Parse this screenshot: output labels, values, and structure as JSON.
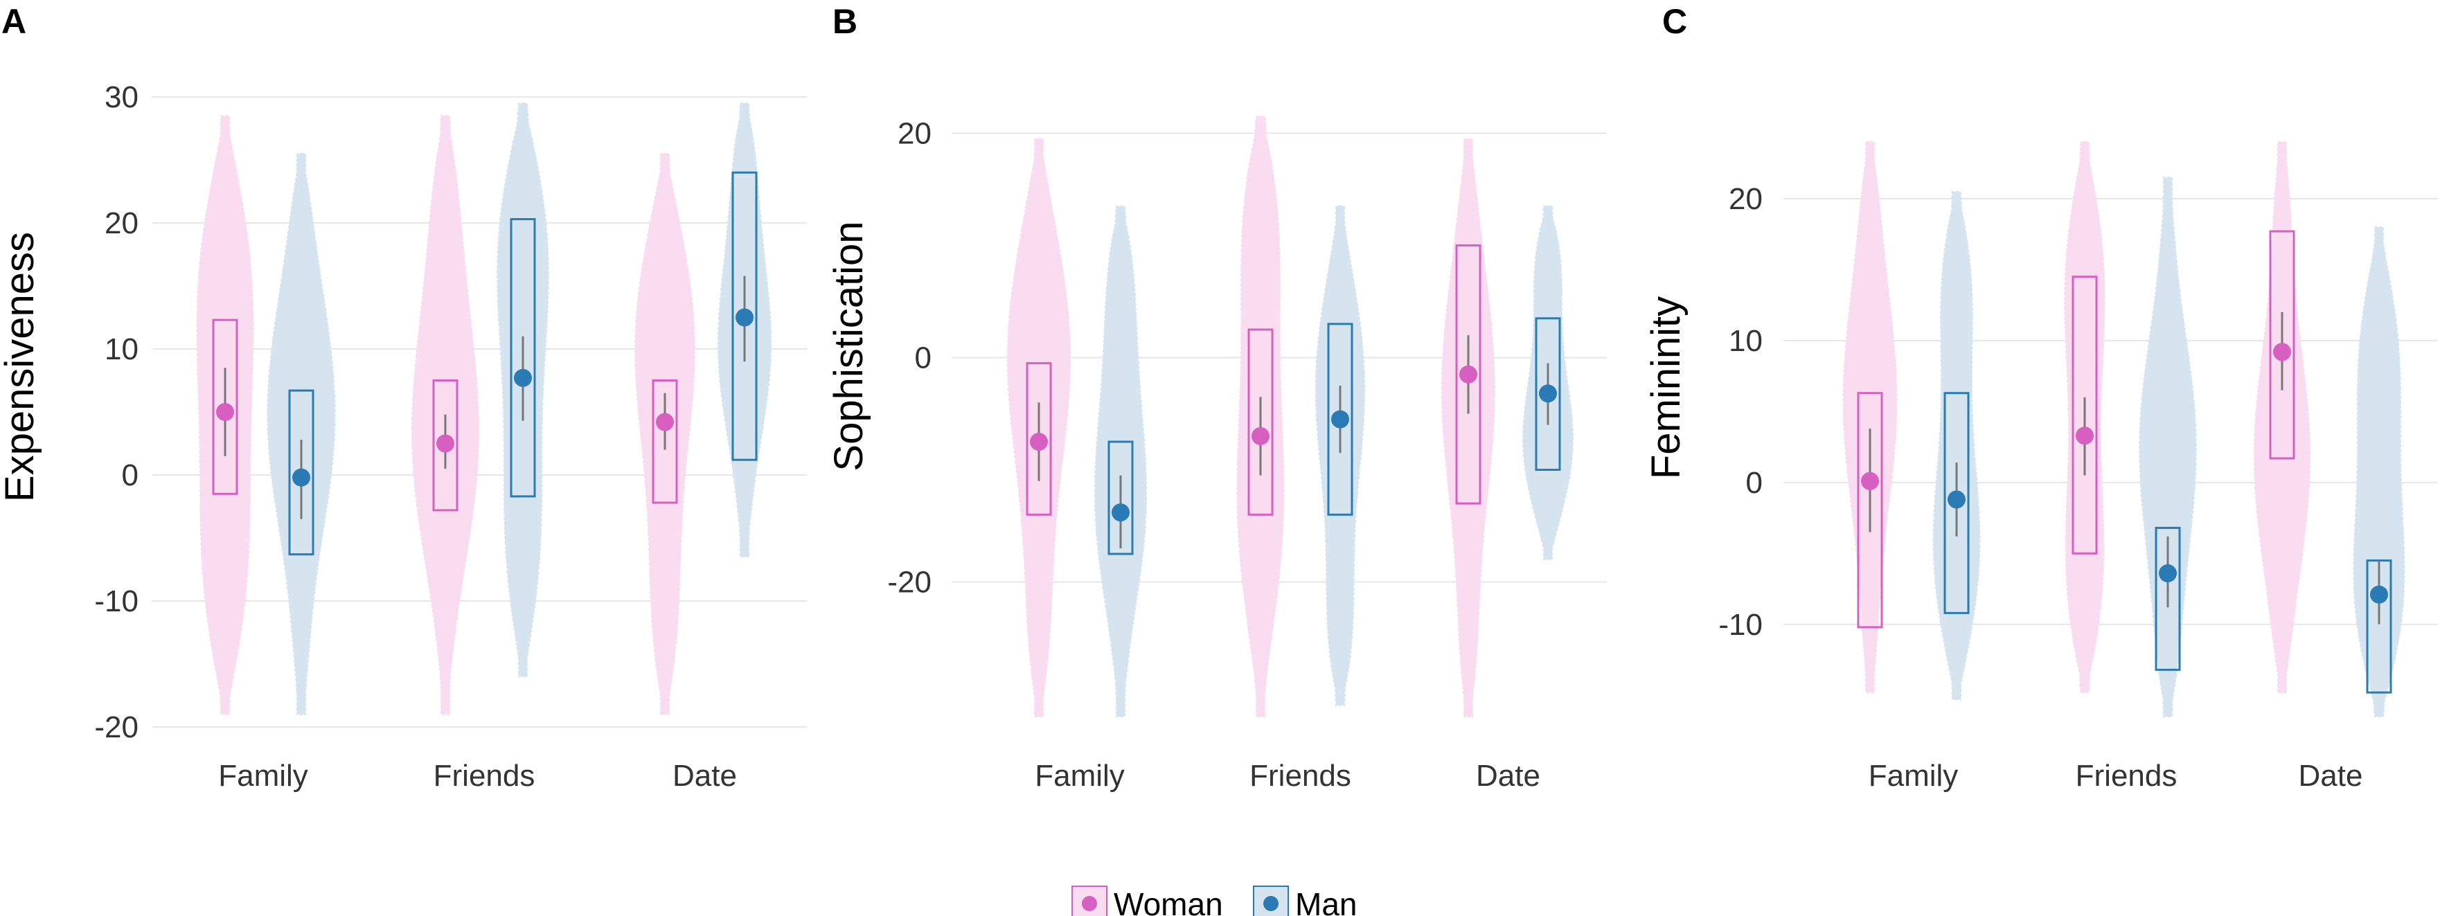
{
  "colors": {
    "woman_fill": "#f9dcef",
    "woman_line": "#d75fc0",
    "man_fill": "#d6e4ef",
    "man_line": "#2a7ab5",
    "grid": "#e6e6e6"
  },
  "legend": {
    "woman_label": "Woman",
    "man_label": "Man"
  },
  "chart_data": [
    {
      "type": "violin",
      "panel": "A",
      "ylabel": "Expensiveness",
      "xlabel": "",
      "ylim": [
        -20,
        30
      ],
      "yticks": [
        30,
        20,
        10,
        0,
        -10,
        -20
      ],
      "ytick_labels": [
        "30",
        "20",
        "10",
        "0",
        "-10",
        "-20"
      ],
      "categories": [
        "Family",
        "Friends",
        "Date"
      ],
      "series": [
        {
          "name": "Woman",
          "violin_range": [
            [
              -19,
              28.5
            ],
            [
              -19,
              28.5
            ],
            [
              -19,
              25.5
            ]
          ],
          "box": [
            [
              -1.5,
              12.3
            ],
            [
              -2.8,
              7.5
            ],
            [
              -2.2,
              7.5
            ]
          ],
          "mean": [
            5,
            2.5,
            4.2
          ],
          "ci": [
            [
              1.5,
              8.5
            ],
            [
              0.5,
              4.8
            ],
            [
              2,
              6.5
            ]
          ]
        },
        {
          "name": "Man",
          "violin_range": [
            [
              -19,
              25.5
            ],
            [
              -16,
              29.5
            ],
            [
              -6.5,
              29.5
            ]
          ],
          "box": [
            [
              -6.3,
              6.7
            ],
            [
              -1.7,
              20.3
            ],
            [
              1.2,
              24
            ]
          ],
          "mean": [
            -0.2,
            7.7,
            12.5
          ],
          "ci": [
            [
              -3.5,
              2.8
            ],
            [
              4.3,
              11
            ],
            [
              9,
              15.8
            ]
          ]
        }
      ]
    },
    {
      "type": "violin",
      "panel": "B",
      "ylabel": "Sophistication",
      "xlabel": "",
      "ylim": [
        -32,
        22
      ],
      "yticks": [
        20,
        0,
        -20
      ],
      "ytick_labels": [
        "20",
        "0",
        "-20"
      ],
      "categories": [
        "Family",
        "Friends",
        "Date"
      ],
      "series": [
        {
          "name": "Woman",
          "violin_range": [
            [
              -32,
              19.5
            ],
            [
              -32,
              21.5
            ],
            [
              -32,
              19.5
            ]
          ],
          "box": [
            [
              -14,
              -0.5
            ],
            [
              -14,
              2.5
            ],
            [
              -13,
              10
            ]
          ],
          "mean": [
            -7.5,
            -7,
            -1.5
          ],
          "ci": [
            [
              -11,
              -4
            ],
            [
              -10.5,
              -3.5
            ],
            [
              -5,
              2
            ]
          ]
        },
        {
          "name": "Man",
          "violin_range": [
            [
              -32,
              13.5
            ],
            [
              -31,
              13.5
            ],
            [
              -18,
              13.5
            ]
          ],
          "box": [
            [
              -17.5,
              -7.5
            ],
            [
              -14,
              3
            ],
            [
              -10,
              3.5
            ]
          ],
          "mean": [
            -13.8,
            -5.5,
            -3.2
          ],
          "ci": [
            [
              -17,
              -10.5
            ],
            [
              -8.5,
              -2.5
            ],
            [
              -6,
              -0.5
            ]
          ]
        }
      ]
    },
    {
      "type": "violin",
      "panel": "C",
      "ylabel": "Femininity",
      "xlabel": "",
      "ylim": [
        -16.5,
        24
      ],
      "yticks": [
        20,
        10,
        0,
        -10
      ],
      "ytick_labels": [
        "20",
        "10",
        "0",
        "-10"
      ],
      "categories": [
        "Family",
        "Friends",
        "Date"
      ],
      "series": [
        {
          "name": "Woman",
          "violin_range": [
            [
              -14.8,
              24
            ],
            [
              -14.8,
              24
            ],
            [
              -14.8,
              24
            ]
          ],
          "box": [
            [
              -10.2,
              6.3
            ],
            [
              -5,
              14.5
            ],
            [
              1.7,
              17.7
            ]
          ],
          "mean": [
            0.1,
            3.3,
            9.2
          ],
          "ci": [
            [
              -3.5,
              3.8
            ],
            [
              0.5,
              6
            ],
            [
              6.5,
              12
            ]
          ]
        },
        {
          "name": "Man",
          "violin_range": [
            [
              -15.3,
              20.5
            ],
            [
              -16.5,
              21.5
            ],
            [
              -16.5,
              18
            ]
          ],
          "box": [
            [
              -9.2,
              6.3
            ],
            [
              -13.2,
              -3.2
            ],
            [
              -14.8,
              -5.5
            ]
          ],
          "mean": [
            -1.2,
            -6.4,
            -7.9
          ],
          "ci": [
            [
              -3.8,
              1.4
            ],
            [
              -8.8,
              -3.8
            ],
            [
              -10,
              -5.5
            ]
          ]
        }
      ]
    }
  ]
}
